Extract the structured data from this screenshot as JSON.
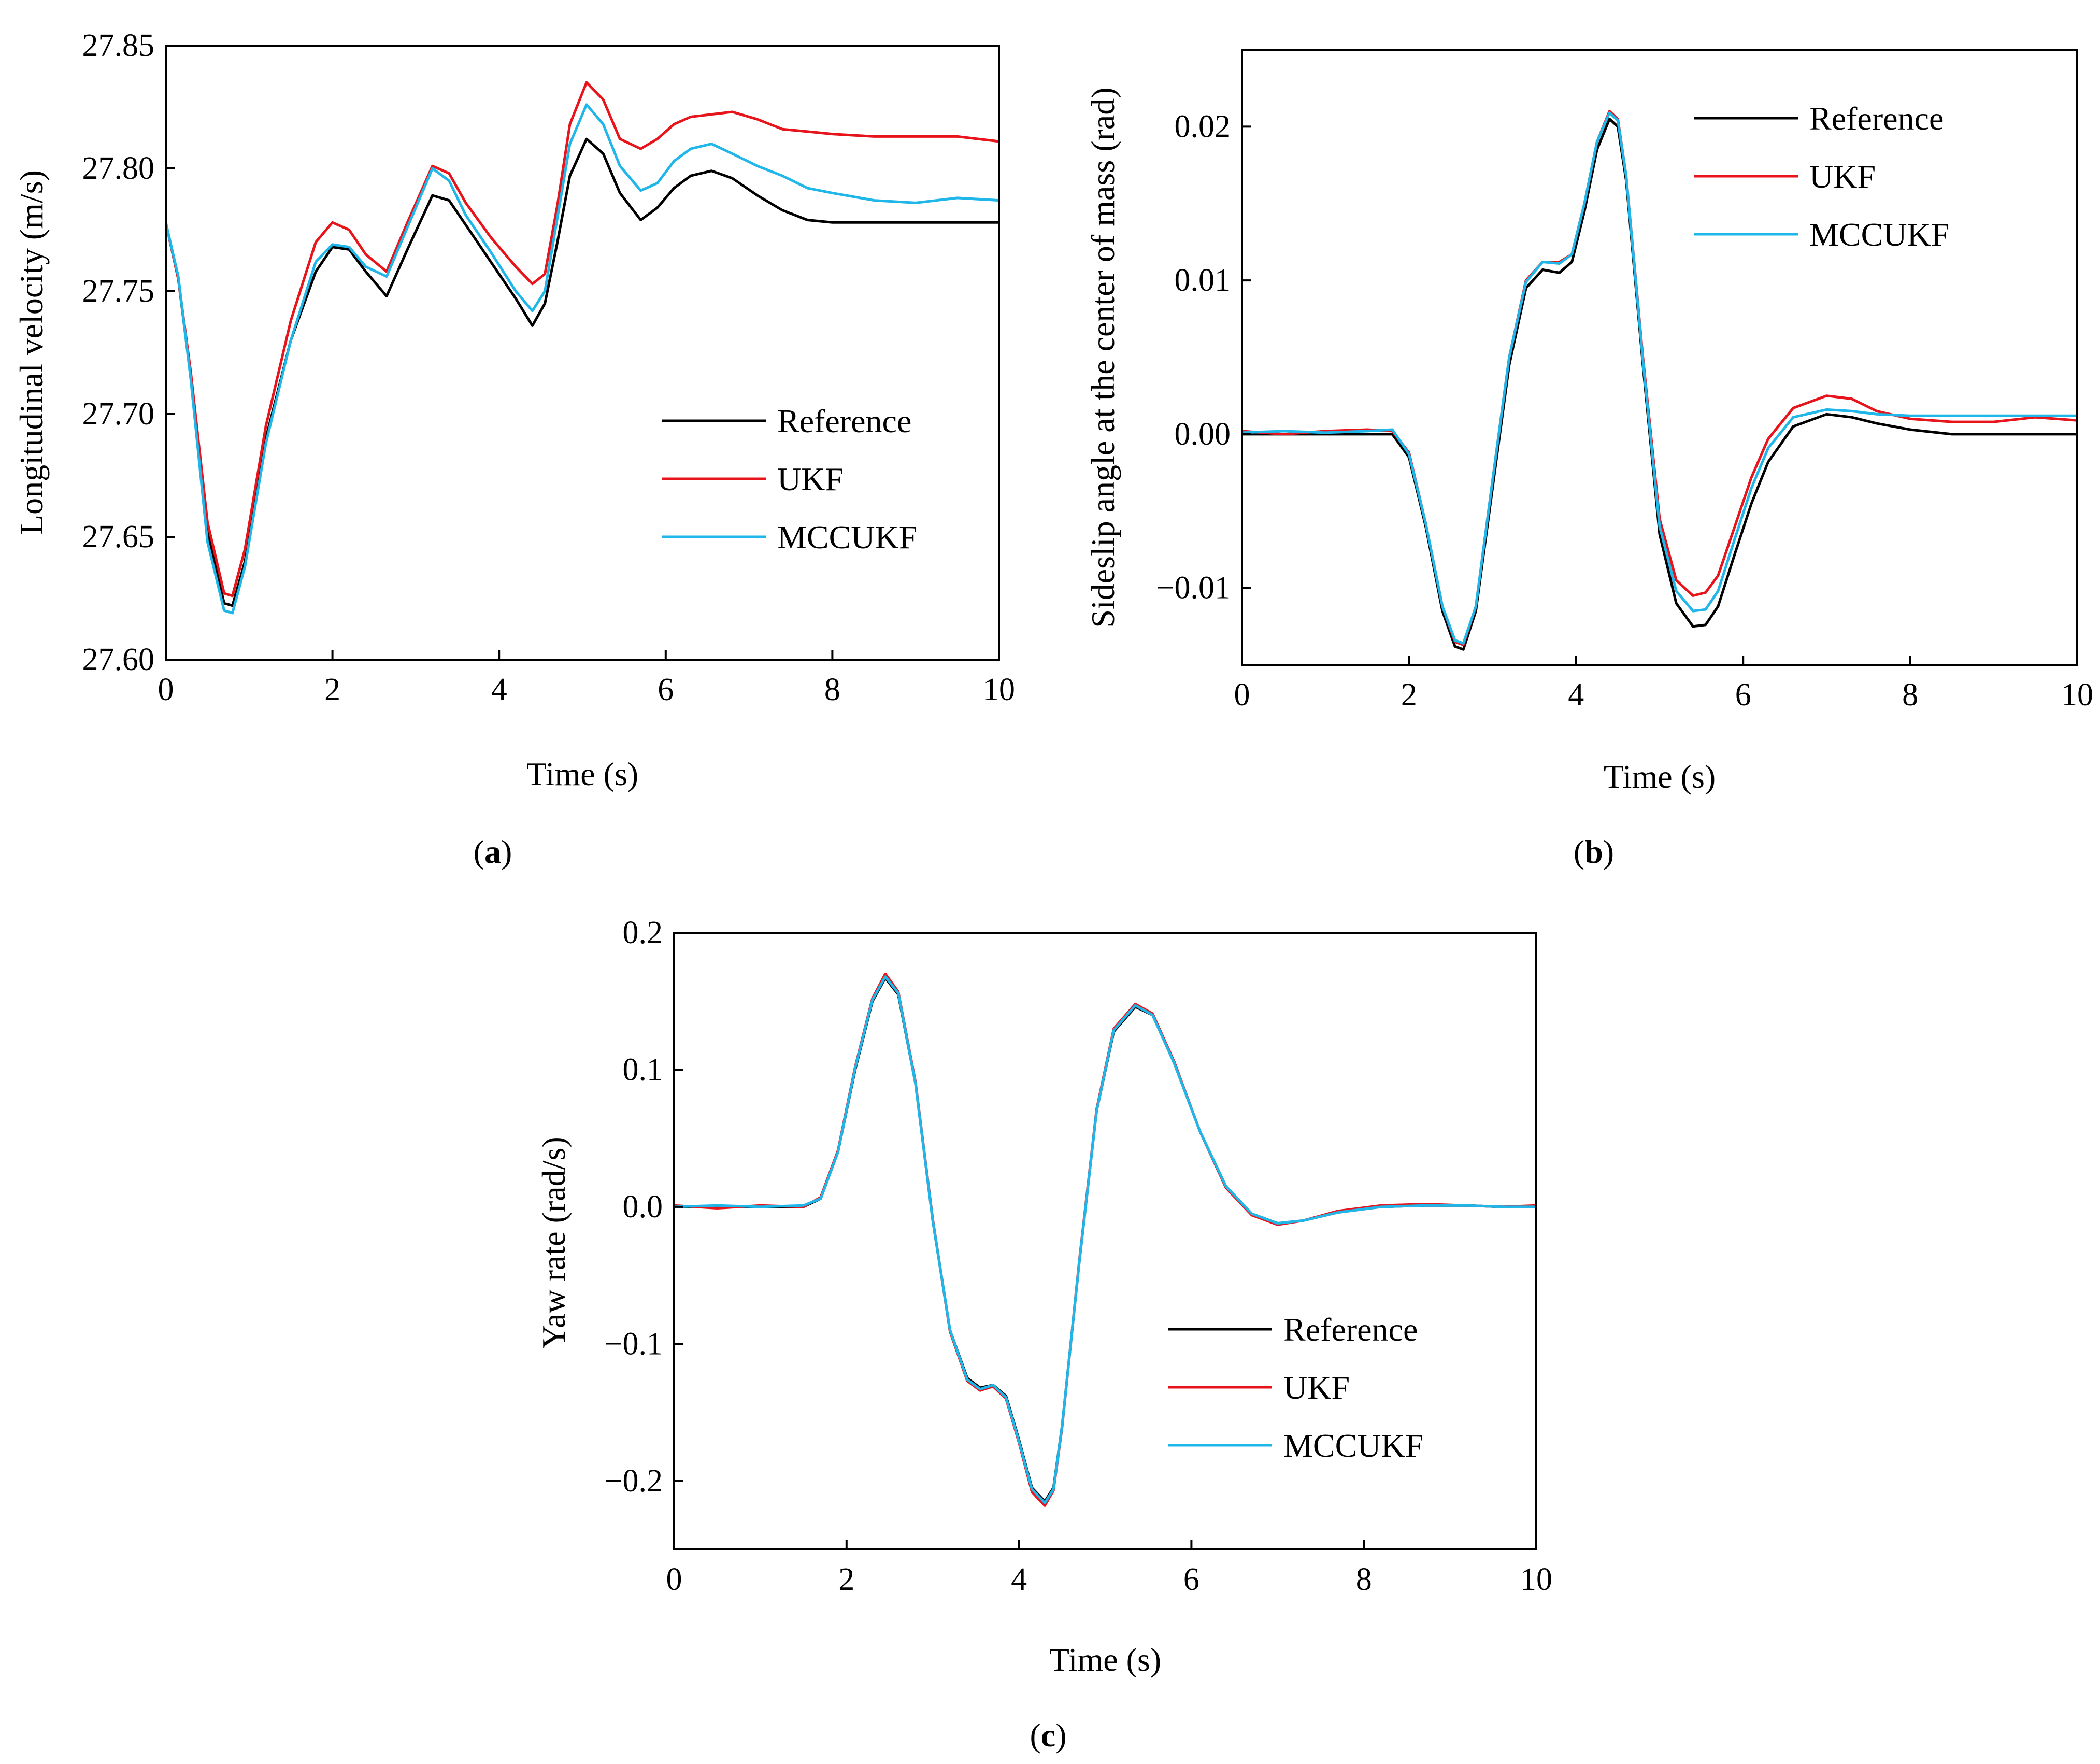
{
  "figure": {
    "panel_labels": [
      {
        "open": "(",
        "letter": "a",
        "close": ")"
      },
      {
        "open": "(",
        "letter": "b",
        "close": ")"
      },
      {
        "open": "(",
        "letter": "c",
        "close": ")"
      }
    ]
  },
  "chart_data": [
    {
      "type": "line",
      "panel": "a",
      "title": "",
      "xlabel": "Time (s)",
      "ylabel": "Longitudinal velocity (m/s)",
      "xlim": [
        0,
        10
      ],
      "ylim": [
        27.6,
        27.85
      ],
      "xticks": [
        "0",
        "2",
        "4",
        "6",
        "8",
        "10"
      ],
      "yticks": [
        "27.60",
        "27.65",
        "27.70",
        "27.75",
        "27.80",
        "27.85"
      ],
      "legend_position": "lower-right",
      "grid": false,
      "series": [
        {
          "name": "Reference",
          "color": "#000000",
          "x": [
            0,
            0.15,
            0.3,
            0.5,
            0.7,
            0.8,
            0.95,
            1.2,
            1.5,
            1.8,
            2.0,
            2.2,
            2.4,
            2.65,
            2.9,
            3.2,
            3.4,
            3.6,
            3.9,
            4.2,
            4.4,
            4.55,
            4.7,
            4.85,
            5.05,
            5.25,
            5.45,
            5.7,
            5.9,
            6.1,
            6.3,
            6.55,
            6.8,
            7.1,
            7.4,
            7.7,
            8.0,
            8.5,
            9.0,
            9.5,
            10.0
          ],
          "y": [
            27.778,
            27.755,
            27.715,
            27.652,
            27.623,
            27.622,
            27.64,
            27.69,
            27.73,
            27.758,
            27.768,
            27.767,
            27.758,
            27.748,
            27.767,
            27.789,
            27.787,
            27.777,
            27.762,
            27.747,
            27.736,
            27.745,
            27.77,
            27.797,
            27.812,
            27.806,
            27.79,
            27.779,
            27.784,
            27.792,
            27.797,
            27.799,
            27.796,
            27.789,
            27.783,
            27.779,
            27.778,
            27.778,
            27.778,
            27.778,
            27.778
          ]
        },
        {
          "name": "UKF",
          "color": "#e8141b",
          "x": [
            0,
            0.15,
            0.3,
            0.5,
            0.7,
            0.8,
            0.95,
            1.2,
            1.5,
            1.8,
            2.0,
            2.2,
            2.4,
            2.65,
            2.9,
            3.2,
            3.4,
            3.6,
            3.9,
            4.2,
            4.4,
            4.55,
            4.7,
            4.85,
            5.05,
            5.25,
            5.45,
            5.7,
            5.9,
            6.1,
            6.3,
            6.55,
            6.8,
            7.1,
            7.4,
            7.7,
            8.0,
            8.5,
            9.0,
            9.5,
            10.0
          ],
          "y": [
            27.778,
            27.755,
            27.717,
            27.656,
            27.627,
            27.626,
            27.645,
            27.695,
            27.738,
            27.77,
            27.778,
            27.775,
            27.765,
            27.758,
            27.778,
            27.801,
            27.798,
            27.786,
            27.772,
            27.76,
            27.753,
            27.757,
            27.785,
            27.818,
            27.835,
            27.828,
            27.812,
            27.808,
            27.812,
            27.818,
            27.821,
            27.822,
            27.823,
            27.82,
            27.816,
            27.815,
            27.814,
            27.813,
            27.813,
            27.813,
            27.811
          ]
        },
        {
          "name": "MCCUKF",
          "color": "#1fb6ea",
          "x": [
            0,
            0.15,
            0.3,
            0.5,
            0.7,
            0.8,
            0.95,
            1.2,
            1.5,
            1.8,
            2.0,
            2.2,
            2.4,
            2.65,
            2.9,
            3.2,
            3.4,
            3.6,
            3.9,
            4.2,
            4.4,
            4.55,
            4.7,
            4.85,
            5.05,
            5.25,
            5.45,
            5.7,
            5.9,
            6.1,
            6.3,
            6.55,
            6.8,
            7.1,
            7.4,
            7.7,
            8.0,
            8.5,
            9.0,
            9.5,
            10.0
          ],
          "y": [
            27.778,
            27.756,
            27.714,
            27.648,
            27.62,
            27.619,
            27.638,
            27.688,
            27.73,
            27.762,
            27.769,
            27.768,
            27.76,
            27.756,
            27.776,
            27.8,
            27.795,
            27.781,
            27.766,
            27.75,
            27.742,
            27.75,
            27.78,
            27.81,
            27.826,
            27.818,
            27.801,
            27.791,
            27.794,
            27.803,
            27.808,
            27.81,
            27.806,
            27.801,
            27.797,
            27.792,
            27.79,
            27.787,
            27.786,
            27.788,
            27.787
          ]
        }
      ]
    },
    {
      "type": "line",
      "panel": "b",
      "title": "",
      "xlabel": "Time (s)",
      "ylabel": "Sideslip angle at the center of mass (rad)",
      "xlim": [
        0,
        10
      ],
      "ylim": [
        -0.015,
        0.025
      ],
      "xticks": [
        "0",
        "2",
        "4",
        "6",
        "8",
        "10"
      ],
      "yticks": [
        "−0.01",
        "0.00",
        "0.01",
        "0.02"
      ],
      "ytick_values": [
        -0.01,
        0.0,
        0.01,
        0.02
      ],
      "legend_position": "top-right",
      "grid": false,
      "series": [
        {
          "name": "Reference",
          "color": "#000000",
          "x": [
            0,
            0.5,
            1.0,
            1.5,
            1.8,
            2.0,
            2.2,
            2.4,
            2.55,
            2.65,
            2.8,
            3.0,
            3.2,
            3.4,
            3.6,
            3.8,
            3.95,
            4.1,
            4.25,
            4.4,
            4.5,
            4.6,
            4.8,
            5.0,
            5.2,
            5.4,
            5.55,
            5.7,
            5.9,
            6.1,
            6.3,
            6.6,
            7.0,
            7.3,
            7.6,
            8.0,
            8.5,
            9.0,
            9.5,
            10.0
          ],
          "y": [
            0.0,
            0.0,
            0.0,
            0.0,
            0.0,
            -0.0015,
            -0.006,
            -0.0115,
            -0.0138,
            -0.014,
            -0.0115,
            -0.0035,
            0.0045,
            0.0095,
            0.0107,
            0.0105,
            0.0112,
            0.0145,
            0.0185,
            0.0205,
            0.02,
            0.0165,
            0.0045,
            -0.0065,
            -0.011,
            -0.0125,
            -0.0124,
            -0.0112,
            -0.0078,
            -0.0045,
            -0.0018,
            0.0005,
            0.0013,
            0.0011,
            0.0007,
            0.0003,
            0.0,
            0.0,
            0.0,
            0.0
          ]
        },
        {
          "name": "UKF",
          "color": "#e8141b",
          "x": [
            0,
            0.5,
            1.0,
            1.5,
            1.8,
            2.0,
            2.2,
            2.4,
            2.55,
            2.65,
            2.8,
            3.0,
            3.2,
            3.4,
            3.6,
            3.8,
            3.95,
            4.1,
            4.25,
            4.4,
            4.5,
            4.6,
            4.8,
            5.0,
            5.2,
            5.4,
            5.55,
            5.7,
            5.9,
            6.1,
            6.3,
            6.6,
            7.0,
            7.3,
            7.6,
            8.0,
            8.5,
            9.0,
            9.5,
            10.0
          ],
          "y": [
            0.0002,
            0.0,
            0.0002,
            0.0003,
            0.0002,
            -0.0012,
            -0.0058,
            -0.0112,
            -0.0135,
            -0.0137,
            -0.0112,
            -0.003,
            0.005,
            0.01,
            0.0112,
            0.0112,
            0.0117,
            0.015,
            0.019,
            0.021,
            0.0205,
            0.0168,
            0.005,
            -0.0055,
            -0.0095,
            -0.0105,
            -0.0103,
            -0.0092,
            -0.006,
            -0.0028,
            -0.0003,
            0.0017,
            0.0025,
            0.0023,
            0.0015,
            0.001,
            0.0008,
            0.0008,
            0.0011,
            0.0009
          ]
        },
        {
          "name": "MCCUKF",
          "color": "#1fb6ea",
          "x": [
            0,
            0.5,
            1.0,
            1.5,
            1.8,
            2.0,
            2.2,
            2.4,
            2.55,
            2.65,
            2.8,
            3.0,
            3.2,
            3.4,
            3.6,
            3.8,
            3.95,
            4.1,
            4.25,
            4.4,
            4.5,
            4.6,
            4.8,
            5.0,
            5.2,
            5.4,
            5.55,
            5.7,
            5.9,
            6.1,
            6.3,
            6.6,
            7.0,
            7.3,
            7.6,
            8.0,
            8.5,
            9.0,
            9.5,
            10.0
          ],
          "y": [
            0.0001,
            0.0002,
            0.0001,
            0.0002,
            0.0003,
            -0.0013,
            -0.0058,
            -0.0112,
            -0.0134,
            -0.0136,
            -0.0112,
            -0.003,
            0.005,
            0.0099,
            0.0112,
            0.0111,
            0.0117,
            0.015,
            0.019,
            0.0209,
            0.0204,
            0.0168,
            0.0048,
            -0.006,
            -0.0102,
            -0.0115,
            -0.0114,
            -0.0102,
            -0.0068,
            -0.0035,
            -0.0009,
            0.0011,
            0.0016,
            0.0015,
            0.0013,
            0.0012,
            0.0012,
            0.0012,
            0.0012,
            0.0012
          ]
        }
      ]
    },
    {
      "type": "line",
      "panel": "c",
      "title": "",
      "xlabel": "Time (s)",
      "ylabel": "Yaw rate (rad/s)",
      "xlim": [
        0,
        10
      ],
      "ylim": [
        -0.25,
        0.2
      ],
      "xticks": [
        "0",
        "2",
        "4",
        "6",
        "8",
        "10"
      ],
      "yticks": [
        "−0.2",
        "−0.1",
        "0.0",
        "0.1",
        "0.2"
      ],
      "ytick_values": [
        -0.2,
        -0.1,
        0.0,
        0.1,
        0.2
      ],
      "legend_position": "lower-right",
      "grid": false,
      "series": [
        {
          "name": "Reference",
          "color": "#000000",
          "x": [
            0,
            0.5,
            1.0,
            1.5,
            1.7,
            1.9,
            2.1,
            2.3,
            2.45,
            2.6,
            2.8,
            3.0,
            3.2,
            3.4,
            3.55,
            3.7,
            3.85,
            4.0,
            4.15,
            4.3,
            4.4,
            4.5,
            4.7,
            4.9,
            5.1,
            5.35,
            5.55,
            5.8,
            6.1,
            6.4,
            6.7,
            7.0,
            7.3,
            7.7,
            8.2,
            8.7,
            9.2,
            9.6,
            10.0
          ],
          "y": [
            0.0,
            0.0,
            0.0,
            0.0,
            0.006,
            0.04,
            0.1,
            0.15,
            0.167,
            0.155,
            0.09,
            -0.01,
            -0.09,
            -0.125,
            -0.132,
            -0.13,
            -0.138,
            -0.17,
            -0.205,
            -0.215,
            -0.205,
            -0.16,
            -0.04,
            0.07,
            0.128,
            0.146,
            0.14,
            0.105,
            0.055,
            0.015,
            -0.005,
            -0.012,
            -0.01,
            -0.004,
            0.0,
            0.001,
            0.001,
            0.0,
            0.0
          ]
        },
        {
          "name": "UKF",
          "color": "#e8141b",
          "x": [
            0,
            0.5,
            1.0,
            1.5,
            1.7,
            1.9,
            2.1,
            2.3,
            2.45,
            2.6,
            2.8,
            3.0,
            3.2,
            3.4,
            3.55,
            3.7,
            3.85,
            4.0,
            4.15,
            4.3,
            4.4,
            4.5,
            4.7,
            4.9,
            5.1,
            5.35,
            5.55,
            5.8,
            6.1,
            6.4,
            6.7,
            7.0,
            7.3,
            7.7,
            8.2,
            8.7,
            9.2,
            9.6,
            10.0
          ],
          "y": [
            0.001,
            -0.001,
            0.001,
            0.0,
            0.007,
            0.041,
            0.102,
            0.152,
            0.17,
            0.157,
            0.091,
            -0.009,
            -0.091,
            -0.127,
            -0.134,
            -0.131,
            -0.14,
            -0.172,
            -0.208,
            -0.218,
            -0.207,
            -0.161,
            -0.039,
            0.071,
            0.13,
            0.148,
            0.141,
            0.106,
            0.055,
            0.014,
            -0.006,
            -0.013,
            -0.01,
            -0.003,
            0.001,
            0.002,
            0.001,
            0.0,
            0.001
          ]
        },
        {
          "name": "MCCUKF",
          "color": "#1fb6ea",
          "x": [
            0,
            0.5,
            1.0,
            1.5,
            1.7,
            1.9,
            2.1,
            2.3,
            2.45,
            2.6,
            2.8,
            3.0,
            3.2,
            3.4,
            3.55,
            3.7,
            3.85,
            4.0,
            4.15,
            4.3,
            4.4,
            4.5,
            4.7,
            4.9,
            5.1,
            5.35,
            5.55,
            5.8,
            6.1,
            6.4,
            6.7,
            7.0,
            7.3,
            7.7,
            8.2,
            8.7,
            9.2,
            9.6,
            10.0
          ],
          "y": [
            0.0,
            0.001,
            0.0,
            0.001,
            0.006,
            0.04,
            0.101,
            0.151,
            0.168,
            0.156,
            0.09,
            -0.01,
            -0.09,
            -0.126,
            -0.133,
            -0.13,
            -0.139,
            -0.171,
            -0.206,
            -0.216,
            -0.206,
            -0.16,
            -0.04,
            0.07,
            0.129,
            0.147,
            0.14,
            0.105,
            0.055,
            0.015,
            -0.005,
            -0.012,
            -0.01,
            -0.004,
            0.0,
            0.001,
            0.001,
            0.0,
            0.0
          ]
        }
      ]
    }
  ]
}
